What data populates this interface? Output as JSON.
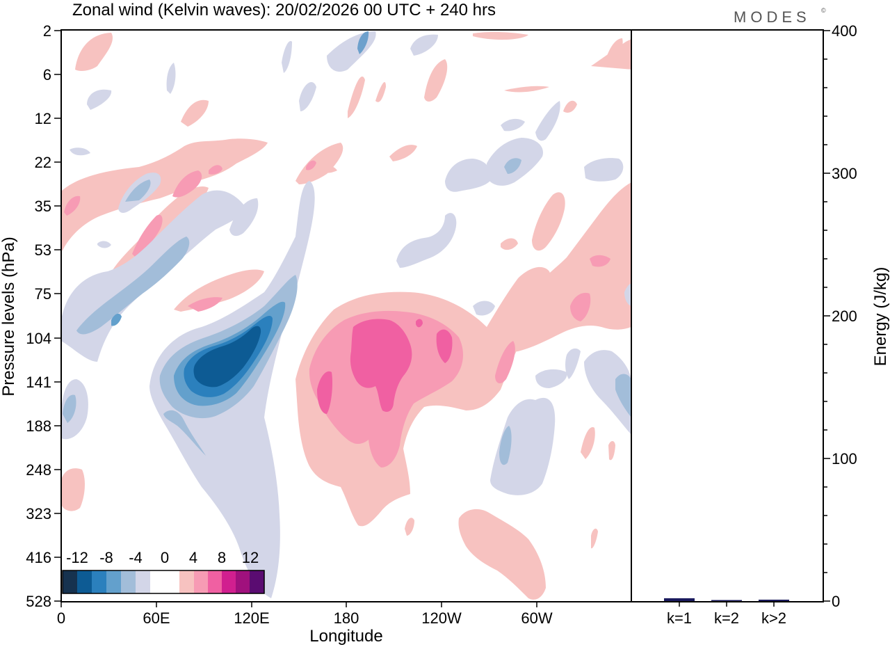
{
  "chart_data": [
    {
      "type": "heatmap",
      "title": "Zonal wind (Kelvin waves):  20/02/2026  00 UTC  + 240 hrs",
      "xlabel": "Longitude",
      "ylabel": "Pressure levels (hPa)",
      "x_ticks": [
        "0",
        "60E",
        "120E",
        "180",
        "120W",
        "60W"
      ],
      "x_tick_values": [
        0,
        60,
        120,
        180,
        240,
        300
      ],
      "xlim": [
        0,
        360
      ],
      "y_ticks": [
        "2",
        "6",
        "12",
        "22",
        "35",
        "53",
        "75",
        "104",
        "141",
        "188",
        "248",
        "323",
        "416",
        "528"
      ],
      "legend": {
        "labels": [
          "-12",
          "-8",
          "-4",
          "0",
          "4",
          "8",
          "12"
        ],
        "colors": [
          "#16324f",
          "#0d5b94",
          "#2b80bd",
          "#63a0cc",
          "#a2bdd9",
          "#d3d6e8",
          "#ffffff",
          "#ffffff",
          "#f7c2c0",
          "#f79bb4",
          "#f060a2",
          "#d11f8f",
          "#a0117d",
          "#5a0c71"
        ],
        "placement": "bottom-left"
      },
      "features": [
        {
          "label": "westerly (positive) anomaly",
          "lon_center": 195,
          "level_center": 120,
          "approx_max": 10
        },
        {
          "label": "easterly (negative) anomaly",
          "lon_center": 105,
          "level_center": 115,
          "approx_min": -12
        },
        {
          "label": "descending westerly band",
          "lon_range": [
            40,
            110
          ],
          "level_range": [
            22,
            75
          ],
          "approx_max": 6
        },
        {
          "label": "descending easterly band",
          "lon_range": [
            25,
            110
          ],
          "level_range": [
            35,
            104
          ],
          "approx_min": -6
        }
      ]
    },
    {
      "type": "bar",
      "ylabel": "Energy (J/kg)",
      "categories": [
        "k=1",
        "k=2",
        "k>2"
      ],
      "values": [
        2,
        0.5,
        1
      ],
      "ylim": [
        0,
        400
      ],
      "y_ticks": [
        "0",
        "100",
        "200",
        "300",
        "400"
      ],
      "bar_color": "#1a1a5e"
    }
  ],
  "logo": "MODES",
  "logo_mark": "©"
}
